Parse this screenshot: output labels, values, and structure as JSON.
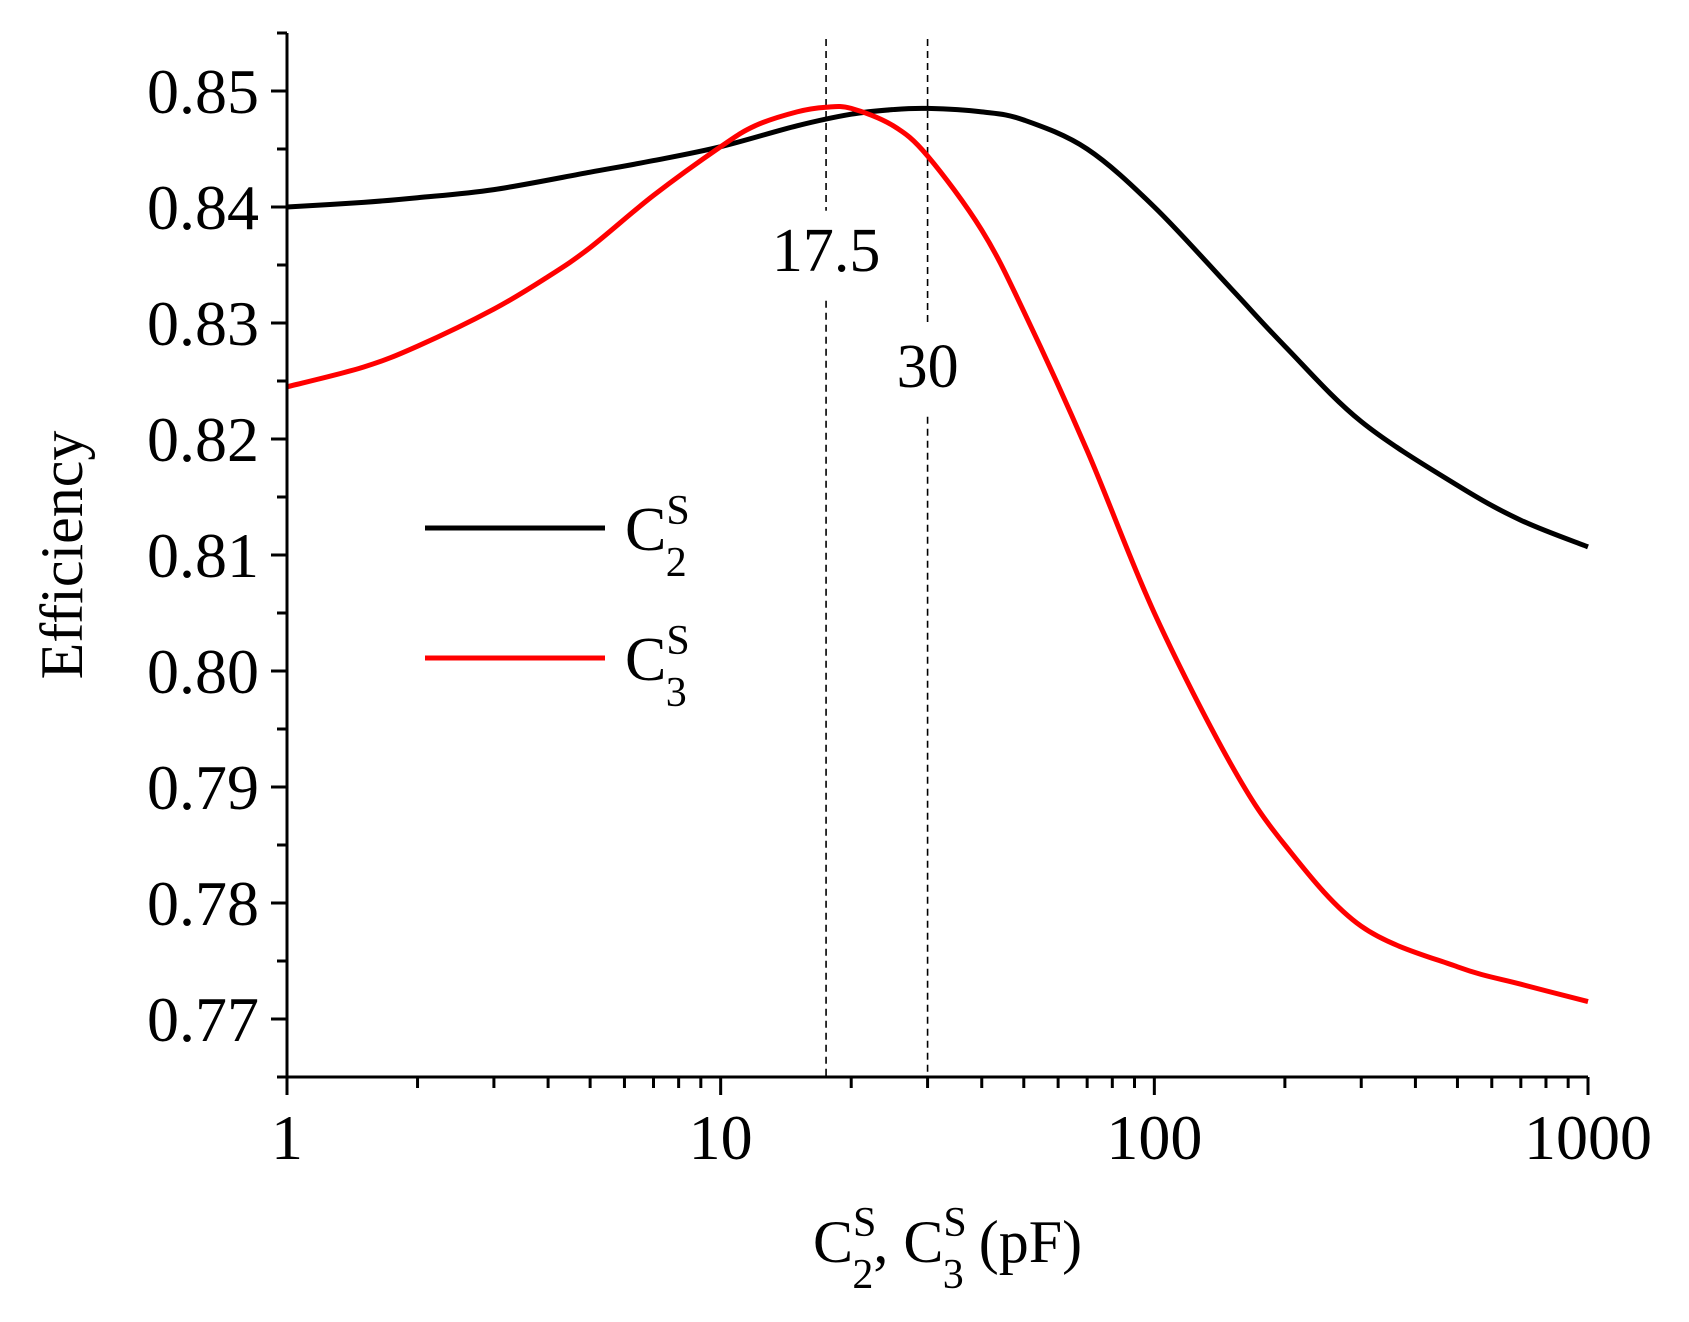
{
  "chart_data": {
    "type": "line",
    "title": "",
    "xlabel": {
      "parts": [
        {
          "base": "C",
          "sup": "S",
          "sub": "2"
        },
        {
          "text": ", "
        },
        {
          "base": "C",
          "sup": "S",
          "sub": "3"
        },
        {
          "text": " (pF)"
        }
      ]
    },
    "ylabel": "Efficiency",
    "xscale": "log",
    "xlim": [
      1,
      1000
    ],
    "ylim": [
      0.765,
      0.855
    ],
    "x_ticks": [
      1,
      10,
      100,
      1000
    ],
    "x_tick_labels": [
      "1",
      "10",
      "100",
      "1000"
    ],
    "y_ticks": [
      0.77,
      0.78,
      0.79,
      0.8,
      0.81,
      0.82,
      0.83,
      0.84,
      0.85
    ],
    "y_tick_labels": [
      "0.77",
      "0.78",
      "0.79",
      "0.80",
      "0.81",
      "0.82",
      "0.83",
      "0.84",
      "0.85"
    ],
    "grid": false,
    "legend_position": "middle-left",
    "series": [
      {
        "name": "C2S",
        "legend": {
          "base": "C",
          "sup": "S",
          "sub": "2"
        },
        "color": "#000000",
        "x": [
          1,
          1.5,
          2,
          3,
          5,
          7,
          10,
          15,
          20,
          25,
          30,
          40,
          50,
          70,
          100,
          150,
          200,
          300,
          500,
          700,
          1000
        ],
        "y": [
          0.84,
          0.8404,
          0.8408,
          0.8415,
          0.843,
          0.844,
          0.8452,
          0.847,
          0.848,
          0.8484,
          0.8485,
          0.8482,
          0.8475,
          0.845,
          0.84,
          0.833,
          0.828,
          0.8215,
          0.816,
          0.813,
          0.8107
        ]
      },
      {
        "name": "C3S",
        "legend": {
          "base": "C",
          "sup": "S",
          "sub": "3"
        },
        "color": "#ff0000",
        "x": [
          1,
          1.5,
          2,
          3,
          4,
          5,
          7,
          10,
          12,
          15,
          17.5,
          20,
          25,
          30,
          40,
          50,
          70,
          100,
          150,
          200,
          300,
          500,
          700,
          1000
        ],
        "y": [
          0.8245,
          0.8262,
          0.828,
          0.8312,
          0.834,
          0.8365,
          0.841,
          0.8452,
          0.847,
          0.8482,
          0.8486,
          0.8485,
          0.847,
          0.8444,
          0.838,
          0.831,
          0.819,
          0.805,
          0.792,
          0.785,
          0.778,
          0.7745,
          0.773,
          0.7715
        ]
      }
    ],
    "annotations": [
      {
        "x": 17.5,
        "label": "17.5",
        "label_y": 0.8345,
        "style": "dashed"
      },
      {
        "x": 30,
        "label": "30",
        "label_y": 0.8245,
        "style": "dashed"
      }
    ]
  }
}
